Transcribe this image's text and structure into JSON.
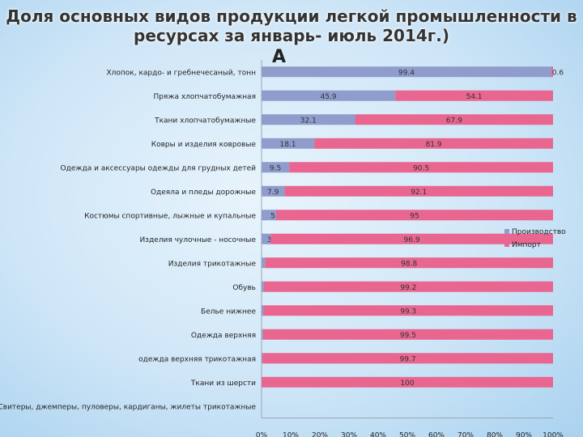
{
  "title_line1": "Доля основных видов продукции легкой промышленности в",
  "title_line2": "ресурсах за январь- июль 2014г.)",
  "marker_letter": "А",
  "chart_data": {
    "type": "bar",
    "orientation": "horizontal",
    "stacked": true,
    "categories": [
      "Хлопок, кардо- и гребнечесаный, тонн",
      "Пряжа хлопчатобумажная",
      "Ткани хлопчатобумажные",
      "Ковры и изделия ковровые",
      "Одежда и аксессуары одежды для грудных детей",
      "Одеяла и пледы дорожные",
      "Костюмы спортивные, лыжные и купальные",
      "Изделия чулочные - носочные",
      "Изделия трикотажные",
      "Обувь",
      "Белье нижнее",
      "Одежда верхняя",
      "одежда верхняя трикотажная",
      "Ткани из шерсти",
      "Свитеры, джемперы, пуловеры, кардиганы, жилеты трикотажные"
    ],
    "series": [
      {
        "name": "Производство",
        "color": "#8f9ccc",
        "values": [
          99.4,
          45.9,
          32.1,
          18.1,
          9.5,
          7.9,
          5,
          3.1,
          1.2,
          0.8,
          0.7,
          0.5,
          0.3,
          0,
          null
        ]
      },
      {
        "name": "Импорт",
        "color": "#e8668f",
        "values": [
          0.6,
          54.1,
          67.9,
          81.9,
          90.5,
          92.1,
          95,
          96.9,
          98.8,
          99.2,
          99.3,
          99.5,
          99.7,
          100,
          null
        ]
      }
    ],
    "x_ticks": [
      "0%",
      "10%",
      "20%",
      "30%",
      "40%",
      "50%",
      "60%",
      "70%",
      "80%",
      "90%",
      "100%"
    ],
    "xlim": [
      0,
      100
    ],
    "legend_position": "right"
  }
}
